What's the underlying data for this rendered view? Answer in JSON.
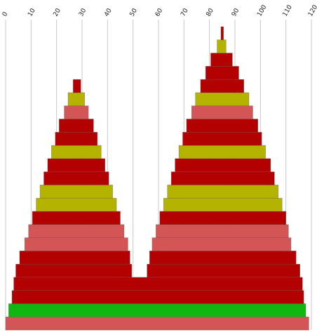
{
  "chart_data": {
    "type": "area",
    "x_ticks": [
      "0",
      "10",
      "20",
      "30",
      "40",
      "50",
      "60",
      "70",
      "80",
      "90",
      "100",
      "110",
      "120"
    ],
    "xlim": [
      0,
      120
    ],
    "grid": "vertical",
    "bands": [
      {
        "left": 0.0,
        "right": 119.0,
        "color": "#d45555"
      },
      {
        "left": 1.2,
        "right": 117.8,
        "color": "#11b711"
      },
      {
        "left": 2.5,
        "right": 117.0,
        "color": "#b30000"
      },
      {
        "left": 3.2,
        "right": 116.5,
        "color": "#b30000"
      },
      {
        "left": 4.0,
        "right": 115.5,
        "color": "#b30000",
        "notch": {
          "left": 49.5,
          "right": 55.5
        }
      },
      {
        "left": 5.5,
        "right": 114.0,
        "color": "#b30000",
        "notch": {
          "left": 48.8,
          "right": 56.5
        }
      },
      {
        "left": 7.5,
        "right": 112.0,
        "color": "#d45555",
        "notch": {
          "left": 48.0,
          "right": 57.5
        }
      },
      {
        "left": 9.0,
        "right": 111.0,
        "color": "#d45555",
        "notch": {
          "left": 46.5,
          "right": 59.0
        }
      },
      {
        "left": 10.5,
        "right": 110.0,
        "color": "#b30000",
        "notch": {
          "left": 45.0,
          "right": 60.5
        }
      },
      {
        "left": 12.0,
        "right": 108.5,
        "color": "#b3b300",
        "notch": {
          "left": 43.5,
          "right": 62.0
        }
      },
      {
        "left": 13.5,
        "right": 107.0,
        "color": "#b3b300",
        "notch": {
          "left": 42.0,
          "right": 63.5
        }
      },
      {
        "left": 15.0,
        "right": 105.5,
        "color": "#b30000",
        "notch": {
          "left": 40.5,
          "right": 65.0
        }
      },
      {
        "left": 16.5,
        "right": 104.0,
        "color": "#b30000",
        "notch": {
          "left": 39.0,
          "right": 66.5
        }
      },
      {
        "left": 18.0,
        "right": 102.0,
        "color": "#b3b300",
        "notch": {
          "left": 37.5,
          "right": 68.0
        }
      },
      {
        "left": 19.5,
        "right": 100.5,
        "color": "#b30000",
        "notch": {
          "left": 36.0,
          "right": 69.5
        }
      },
      {
        "left": 21.0,
        "right": 99.0,
        "color": "#b30000",
        "notch": {
          "left": 34.5,
          "right": 71.0
        }
      },
      {
        "left": 23.0,
        "right": 97.0,
        "color": "#d45555",
        "notch": {
          "left": 32.5,
          "right": 73.0
        }
      },
      {
        "left": 24.5,
        "right": 95.5,
        "color": "#b3b300",
        "notch": {
          "left": 31.0,
          "right": 74.5
        }
      },
      {
        "left": 26.5,
        "right": 93.5,
        "color": "#b30000",
        "notch": {
          "left": 29.5,
          "right": 76.5
        }
      },
      {
        "left": 78.5,
        "right": 91.5,
        "color": "#b30000"
      },
      {
        "left": 80.5,
        "right": 89.0,
        "color": "#b30000"
      },
      {
        "left": 83.0,
        "right": 86.5,
        "color": "#b3b300"
      },
      {
        "left": 84.5,
        "right": 85.5,
        "color": "#b30000"
      }
    ]
  }
}
